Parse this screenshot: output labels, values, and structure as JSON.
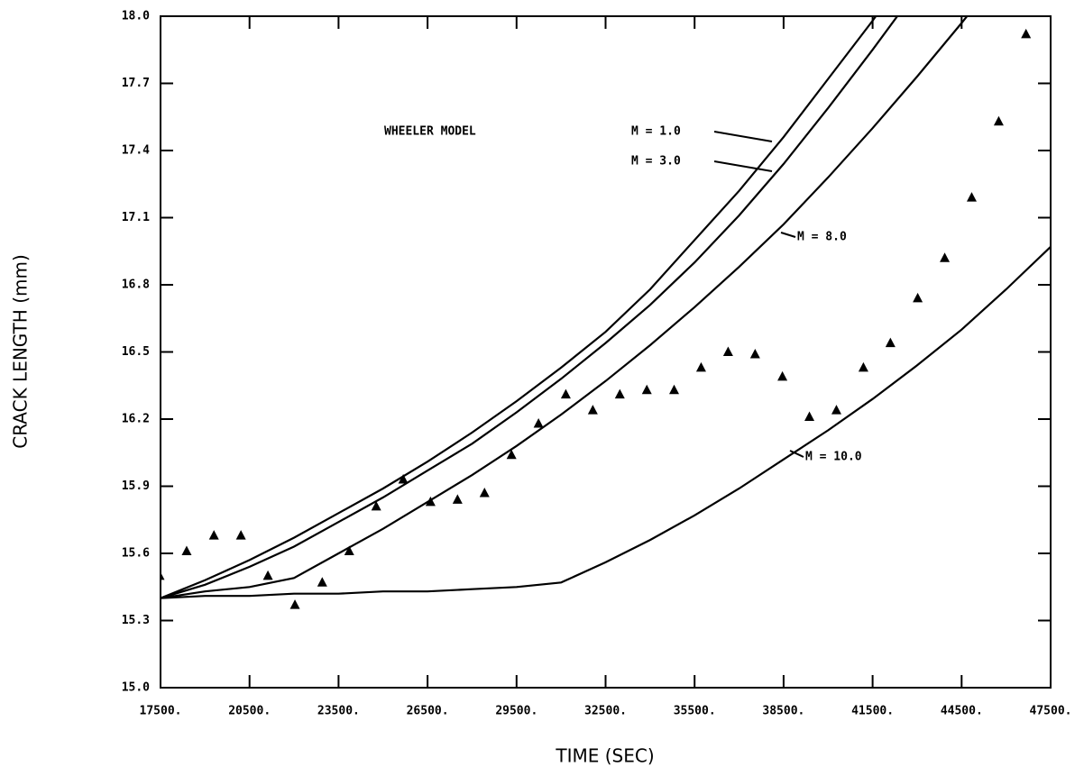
{
  "chart_data": {
    "type": "line",
    "x_label": "TIME  (SEC)",
    "y_label": "CRACK LENGTH  (mm)",
    "annotations": [
      "WHEELER MODEL"
    ],
    "xlim": [
      17500,
      47500
    ],
    "ylim": [
      15.0,
      18.0
    ],
    "xticks": [
      {
        "value": 17500,
        "label": "17500."
      },
      {
        "value": 20500,
        "label": "20500."
      },
      {
        "value": 23500,
        "label": "23500."
      },
      {
        "value": 26500,
        "label": "26500."
      },
      {
        "value": 29500,
        "label": "29500."
      },
      {
        "value": 32500,
        "label": "32500."
      },
      {
        "value": 35500,
        "label": "35500."
      },
      {
        "value": 38500,
        "label": "38500."
      },
      {
        "value": 41500,
        "label": "41500."
      },
      {
        "value": 44500,
        "label": "44500."
      },
      {
        "value": 47500,
        "label": "47500."
      }
    ],
    "yticks": [
      {
        "value": 15,
        "label": "15.0"
      },
      15.3,
      15.6,
      15.9,
      16.2,
      16.5,
      16.8,
      17.1,
      17.4,
      17.7,
      {
        "value": 18,
        "label": "18.0"
      }
    ],
    "x": [
      17500,
      19000,
      20500,
      22000,
      23500,
      25000,
      26500,
      28000,
      29500,
      31000,
      32500,
      34000,
      35500,
      37000,
      38500,
      40000,
      41500,
      43000,
      44500,
      46000,
      47500
    ],
    "series": [
      {
        "name": "M = 1.0",
        "color": "#000000",
        "values": [
          15.4,
          15.48,
          15.57,
          15.67,
          15.78,
          15.89,
          16.01,
          16.14,
          16.28,
          16.43,
          16.59,
          16.78,
          17.0,
          17.22,
          17.46,
          17.72,
          17.98,
          18.26,
          null,
          null,
          null
        ]
      },
      {
        "name": "M = 3.0",
        "color": "#000000",
        "values": [
          15.4,
          15.46,
          15.54,
          15.63,
          15.74,
          15.85,
          15.97,
          16.09,
          16.23,
          16.38,
          16.54,
          16.71,
          16.9,
          17.11,
          17.34,
          17.59,
          17.85,
          18.12,
          null,
          null,
          null
        ]
      },
      {
        "name": "M = 8.0",
        "color": "#000000",
        "values": [
          15.4,
          15.43,
          15.45,
          15.49,
          15.6,
          15.71,
          15.83,
          15.95,
          16.08,
          16.22,
          16.37,
          16.53,
          16.7,
          16.88,
          17.07,
          17.28,
          17.5,
          17.73,
          17.97,
          18.22,
          null
        ]
      },
      {
        "name": "M = 10.0",
        "color": "#000000",
        "values": [
          15.4,
          15.41,
          15.41,
          15.42,
          15.42,
          15.43,
          15.43,
          15.44,
          15.45,
          15.47,
          15.56,
          15.66,
          15.77,
          15.89,
          16.02,
          16.15,
          16.29,
          16.44,
          16.6,
          16.78,
          16.97
        ]
      }
    ],
    "points": {
      "color": "#000000",
      "x": [
        17470,
        18380,
        19300,
        20210,
        21120,
        22030,
        22950,
        23860,
        24770,
        25680,
        26600,
        27510,
        28420,
        29330,
        30240,
        31160,
        32070,
        32980,
        33890,
        34810,
        35720,
        36630,
        37540,
        38460,
        39370,
        40280,
        41190,
        42100,
        43020,
        43930,
        44840,
        45750,
        46670
      ],
      "y": [
        15.5,
        15.61,
        15.68,
        15.68,
        15.5,
        15.37,
        15.47,
        15.61,
        15.81,
        15.93,
        15.83,
        15.84,
        15.87,
        16.04,
        16.18,
        16.31,
        16.24,
        16.31,
        16.33,
        16.33,
        16.43,
        16.5,
        16.49,
        16.39,
        16.21,
        16.24,
        16.43,
        16.54,
        16.74,
        16.92,
        17.19,
        17.53,
        17.92
      ]
    }
  }
}
